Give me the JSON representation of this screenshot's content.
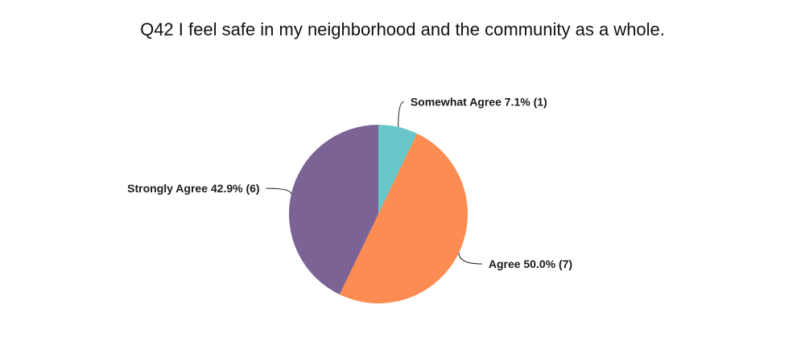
{
  "chart_data": {
    "type": "pie",
    "title": "Q42 I feel safe in my neighborhood and the community as a whole.",
    "direction": "clockwise",
    "start_angle_deg": 0,
    "background": "#ffffff",
    "title_color": "#111111",
    "label_color": "#1a1a1a",
    "leader_line_color": "#1a1a1a",
    "legend": "none",
    "slices": [
      {
        "label": "Somewhat Agree",
        "value": 1,
        "count": 1,
        "percent": "7.1%",
        "color": "#69c6c8",
        "display": "Somewhat Agree 7.1% (1)"
      },
      {
        "label": "Agree",
        "value": 7,
        "count": 7,
        "percent": "50.0%",
        "color": "#fd8c52",
        "display": "Agree 50.0% (7)"
      },
      {
        "label": "Strongly Agree",
        "value": 6,
        "count": 6,
        "percent": "42.9%",
        "color": "#7c6396",
        "display": "Strongly Agree 42.9% (6)"
      }
    ]
  }
}
